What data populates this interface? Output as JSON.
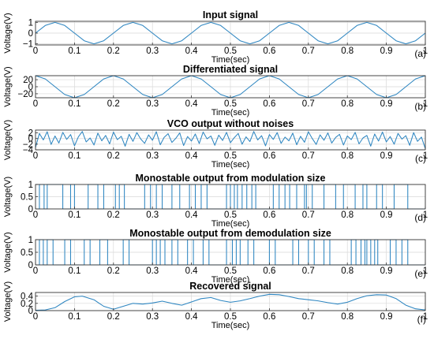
{
  "chart_data": [
    {
      "type": "line",
      "label": "(a)",
      "title": "Input signal",
      "xlabel": "Time(sec)",
      "ylabel": "Voltage(V)",
      "xlim": [
        0,
        1
      ],
      "ylim": [
        -1.1,
        1.1
      ],
      "xticks": [
        "0",
        "0.1",
        "0.2",
        "0.3",
        "0.4",
        "0.5",
        "0.6",
        "0.7",
        "0.8",
        "0.9",
        "1"
      ],
      "yticks": [
        {
          "value": -1,
          "label": "−1"
        },
        {
          "value": 0,
          "label": "0"
        },
        {
          "value": 1,
          "label": "1"
        }
      ],
      "grid": true,
      "series": [
        {
          "x": [
            0,
            0.025,
            0.05,
            0.075,
            0.1,
            0.125,
            0.15,
            0.175,
            0.2,
            0.225,
            0.25,
            0.275,
            0.3,
            0.325,
            0.35,
            0.375,
            0.4,
            0.425,
            0.45,
            0.475,
            0.5,
            0.525,
            0.55,
            0.575,
            0.6,
            0.625,
            0.65,
            0.675,
            0.7,
            0.725,
            0.75,
            0.775,
            0.8,
            0.825,
            0.85,
            0.875,
            0.9,
            0.925,
            0.95,
            0.975,
            1
          ],
          "y": [
            0,
            0.71,
            1,
            0.71,
            0,
            -0.71,
            -1,
            -0.71,
            0,
            0.71,
            1,
            0.71,
            0,
            -0.71,
            -1,
            -0.71,
            0,
            0.71,
            1,
            0.71,
            0,
            -0.71,
            -1,
            -0.71,
            0,
            0.71,
            1,
            0.71,
            0,
            -0.71,
            -1,
            -0.71,
            0,
            0.71,
            1,
            0.71,
            0,
            -0.71,
            -1,
            -0.71,
            0
          ]
        }
      ]
    },
    {
      "type": "line",
      "label": "(b)",
      "title": "Differentiated signal",
      "xlabel": "Time(sec)",
      "ylabel": "Voltage(V)",
      "xlim": [
        0,
        1
      ],
      "ylim": [
        -31.4,
        31.4
      ],
      "xticks": [
        "0",
        "0.1",
        "0.2",
        "0.3",
        "0.4",
        "0.5",
        "0.6",
        "0.7",
        "0.8",
        "0.9",
        "1"
      ],
      "yticks": [
        {
          "value": -20,
          "label": "−20"
        },
        {
          "value": 0,
          "label": "0"
        },
        {
          "value": 20,
          "label": "20"
        }
      ],
      "grid": true,
      "series": [
        {
          "x": [
            0,
            0.025,
            0.05,
            0.075,
            0.1,
            0.125,
            0.15,
            0.175,
            0.2,
            0.225,
            0.25,
            0.275,
            0.3,
            0.325,
            0.35,
            0.375,
            0.4,
            0.425,
            0.45,
            0.475,
            0.5,
            0.525,
            0.55,
            0.575,
            0.6,
            0.625,
            0.65,
            0.675,
            0.7,
            0.725,
            0.75,
            0.775,
            0.8,
            0.825,
            0.85,
            0.875,
            0.9,
            0.925,
            0.95,
            0.975,
            1
          ],
          "y": [
            31.4,
            22.2,
            0,
            -22.2,
            -31.4,
            -22.2,
            0,
            22.2,
            31.4,
            22.2,
            0,
            -22.2,
            -31.4,
            -22.2,
            0,
            22.2,
            31.4,
            22.2,
            0,
            -22.2,
            -31.4,
            -22.2,
            0,
            22.2,
            31.4,
            22.2,
            0,
            -22.2,
            -31.4,
            -22.2,
            0,
            22.2,
            31.4,
            22.2,
            0,
            -22.2,
            -31.4,
            -22.2,
            0,
            22.2,
            31.4
          ]
        }
      ]
    },
    {
      "type": "line",
      "label": "(c)",
      "title": "VCO output without noises",
      "xlabel": "Time(sec)",
      "ylabel": "Voltage(V)",
      "xlim": [
        0,
        1
      ],
      "ylim": [
        -4,
        3
      ],
      "xticks": [
        "0",
        "0.1",
        "0.2",
        "0.3",
        "0.4",
        "0.5",
        "0.6",
        "0.7",
        "0.8",
        "0.9",
        "1"
      ],
      "yticks": [
        {
          "value": -4,
          "label": "−4"
        },
        {
          "value": -2,
          "label": "−2"
        },
        {
          "value": 0,
          "label": "0"
        },
        {
          "value": 2,
          "label": "2"
        }
      ],
      "grid": true,
      "series": [
        {
          "x": [
            0,
            0.01,
            0.02,
            0.03,
            0.04,
            0.05,
            0.06,
            0.07,
            0.08,
            0.09,
            0.1,
            0.11,
            0.12,
            0.13,
            0.14,
            0.15,
            0.16,
            0.17,
            0.18,
            0.19,
            0.2,
            0.21,
            0.22,
            0.23,
            0.24,
            0.25,
            0.26,
            0.27,
            0.28,
            0.29,
            0.3,
            0.31,
            0.32,
            0.33,
            0.34,
            0.35,
            0.36,
            0.37,
            0.38,
            0.39,
            0.4,
            0.41,
            0.42,
            0.43,
            0.44,
            0.45,
            0.46,
            0.47,
            0.48,
            0.49,
            0.5,
            0.51,
            0.52,
            0.53,
            0.54,
            0.55,
            0.56,
            0.57,
            0.58,
            0.59,
            0.6,
            0.61,
            0.62,
            0.63,
            0.64,
            0.65,
            0.66,
            0.67,
            0.68,
            0.69,
            0.7,
            0.71,
            0.72,
            0.73,
            0.74,
            0.75,
            0.76,
            0.77,
            0.78,
            0.79,
            0.8,
            0.81,
            0.82,
            0.83,
            0.84,
            0.85,
            0.86,
            0.87,
            0.88,
            0.89,
            0.9,
            0.91,
            0.92,
            0.93,
            0.94,
            0.95,
            0.96,
            0.97,
            0.98,
            0.99,
            1
          ],
          "y": [
            -3.2,
            1.8,
            -0.5,
            2.4,
            -2.1,
            0.9,
            -1.6,
            2.2,
            -0.3,
            1.4,
            -2.6,
            0.6,
            2.5,
            -1.2,
            0.2,
            -2.3,
            1.9,
            -0.8,
            1.1,
            -1.9,
            2.3,
            -0.4,
            0.8,
            -2.7,
            1.5,
            -1.0,
            2.1,
            -0.2,
            -1.7,
            1.3,
            -0.6,
            2.4,
            -2.2,
            0.4,
            1.7,
            -1.4,
            0.1,
            2.0,
            -2.5,
            0.7,
            -0.9,
            1.6,
            -1.8,
            2.3,
            -0.1,
            0.9,
            -2.4,
            1.2,
            -0.7,
            2.2,
            -1.5,
            0.3,
            1.8,
            -2.0,
            0.6,
            -1.1,
            2.5,
            -0.5,
            1.0,
            -2.6,
            1.4,
            -0.3,
            2.1,
            -1.7,
            0.5,
            -0.8,
            1.9,
            -2.2,
            0.8,
            -1.3,
            2.4,
            0.0,
            -2.1,
            1.3,
            -0.6,
            2.0,
            -1.6,
            0.4,
            1.5,
            -2.3,
            0.9,
            -0.4,
            2.2,
            -1.9,
            0.2,
            1.1,
            -2.7,
            1.6,
            -0.9,
            2.3,
            -1.2,
            0.7,
            -2.0,
            1.8,
            -0.2,
            1.0,
            -2.4,
            2.1,
            -1.0,
            0.5,
            -3.6
          ]
        }
      ]
    },
    {
      "type": "line",
      "label": "(d)",
      "title": "Monostable output from modulation size",
      "xlabel": "Time(sec)",
      "ylabel": "Voltage(V)",
      "xlim": [
        0,
        1
      ],
      "ylim": [
        0,
        1
      ],
      "xticks": [
        "0",
        "0.1",
        "0.2",
        "0.3",
        "0.4",
        "0.5",
        "0.6",
        "0.7",
        "0.8",
        "0.9",
        "1"
      ],
      "yticks": [
        {
          "value": 0,
          "label": "0"
        },
        {
          "value": 0.5,
          "label": "0.5"
        },
        {
          "value": 1,
          "label": "1"
        }
      ],
      "grid": true,
      "pulses": [
        [
          0.01,
          0.022
        ],
        [
          0.03,
          0.07
        ],
        [
          0.09,
          0.1
        ],
        [
          0.135,
          0.16
        ],
        [
          0.175,
          0.205
        ],
        [
          0.215,
          0.228
        ],
        [
          0.28,
          0.295
        ],
        [
          0.31,
          0.325
        ],
        [
          0.35,
          0.37
        ],
        [
          0.395,
          0.41
        ],
        [
          0.425,
          0.44
        ],
        [
          0.49,
          0.5
        ],
        [
          0.51,
          0.518
        ],
        [
          0.53,
          0.542
        ],
        [
          0.555,
          0.565
        ],
        [
          0.61,
          0.625
        ],
        [
          0.64,
          0.652
        ],
        [
          0.67,
          0.69
        ],
        [
          0.695,
          0.71
        ],
        [
          0.74,
          0.77
        ],
        [
          0.79,
          0.82
        ],
        [
          0.84,
          0.85
        ],
        [
          0.875,
          0.89
        ],
        [
          0.92,
          0.955
        ]
      ]
    },
    {
      "type": "line",
      "label": "(e)",
      "title": "Monostable output from demodulation size",
      "xlabel": "Time(sec)",
      "ylabel": "Voltage(V)",
      "xlim": [
        0,
        1
      ],
      "ylim": [
        0,
        1
      ],
      "xticks": [
        "0",
        "0.1",
        "0.2",
        "0.3",
        "0.4",
        "0.5",
        "0.6",
        "0.7",
        "0.8",
        "0.9",
        "1"
      ],
      "yticks": [
        {
          "value": 0,
          "label": "0"
        },
        {
          "value": 0.5,
          "label": "0.5"
        },
        {
          "value": 1,
          "label": "1"
        }
      ],
      "grid": true,
      "pulses": [
        [
          0.01,
          0.02
        ],
        [
          0.03,
          0.045
        ],
        [
          0.075,
          0.09
        ],
        [
          0.125,
          0.14
        ],
        [
          0.165,
          0.185
        ],
        [
          0.225,
          0.24
        ],
        [
          0.3,
          0.31
        ],
        [
          0.32,
          0.332
        ],
        [
          0.35,
          0.365
        ],
        [
          0.39,
          0.405
        ],
        [
          0.43,
          0.445
        ],
        [
          0.49,
          0.505
        ],
        [
          0.515,
          0.525
        ],
        [
          0.545,
          0.56
        ],
        [
          0.6,
          0.615
        ],
        [
          0.66,
          0.675
        ],
        [
          0.7,
          0.715
        ],
        [
          0.74,
          0.755
        ],
        [
          0.81,
          0.822
        ],
        [
          0.835,
          0.845
        ],
        [
          0.85,
          0.86
        ],
        [
          0.87,
          0.878
        ],
        [
          0.91,
          0.925
        ],
        [
          0.94,
          0.955
        ]
      ]
    },
    {
      "type": "line",
      "label": "(f)",
      "title": "Recovered signal",
      "xlabel": "Time(sec)",
      "ylabel": "Voltage(V)",
      "xlim": [
        0,
        1
      ],
      "ylim": [
        0,
        0.5
      ],
      "xticks": [
        "0",
        "0.1",
        "0.2",
        "0.3",
        "0.4",
        "0.5",
        "0.6",
        "0.7",
        "0.8",
        "0.9",
        "1"
      ],
      "yticks": [
        {
          "value": 0,
          "label": "0"
        },
        {
          "value": 0.2,
          "label": "0.2"
        },
        {
          "value": 0.4,
          "label": "0.4"
        }
      ],
      "grid": true,
      "series": [
        {
          "x": [
            0,
            0.025,
            0.05,
            0.075,
            0.1,
            0.12,
            0.15,
            0.175,
            0.2,
            0.225,
            0.25,
            0.275,
            0.3,
            0.325,
            0.35,
            0.375,
            0.4,
            0.425,
            0.45,
            0.475,
            0.5,
            0.525,
            0.55,
            0.575,
            0.6,
            0.625,
            0.65,
            0.675,
            0.7,
            0.725,
            0.75,
            0.775,
            0.8,
            0.825,
            0.85,
            0.875,
            0.9,
            0.925,
            0.95,
            0.975,
            1
          ],
          "y": [
            0.01,
            0.02,
            0.08,
            0.25,
            0.38,
            0.4,
            0.3,
            0.12,
            0.04,
            0.12,
            0.2,
            0.18,
            0.21,
            0.26,
            0.2,
            0.15,
            0.24,
            0.33,
            0.36,
            0.28,
            0.23,
            0.27,
            0.33,
            0.4,
            0.45,
            0.44,
            0.39,
            0.33,
            0.3,
            0.27,
            0.22,
            0.18,
            0.23,
            0.33,
            0.41,
            0.44,
            0.43,
            0.33,
            0.15,
            0.05,
            0.02
          ]
        }
      ]
    }
  ]
}
